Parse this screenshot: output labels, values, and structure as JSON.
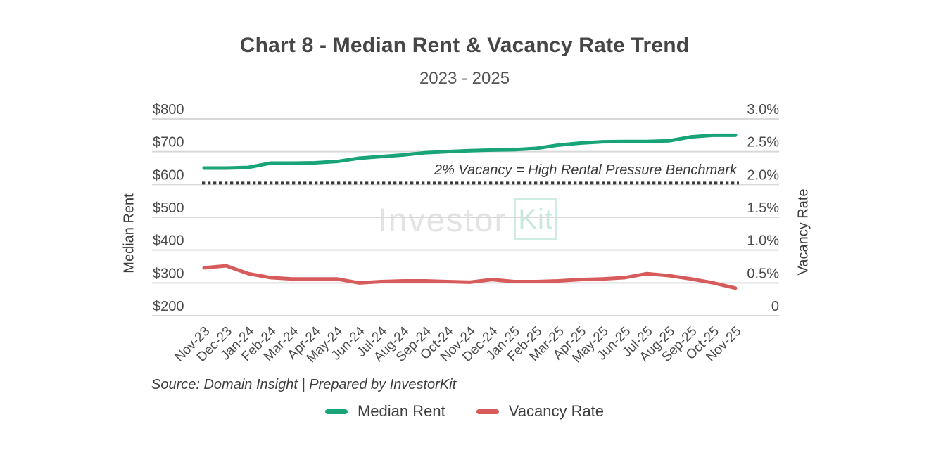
{
  "chart_data": {
    "type": "line",
    "title": "Chart 8 - Median Rent & Vacancy Rate Trend",
    "subtitle": "2023 - 2025",
    "categories": [
      "Nov-23",
      "Dec-23",
      "Jan-24",
      "Feb-24",
      "Mar-24",
      "Apr-24",
      "May-24",
      "Jun-24",
      "Jul-24",
      "Aug-24",
      "Sep-24",
      "Oct-24",
      "Nov-24",
      "Dec-24",
      "Jan-25",
      "Feb-25",
      "Mar-25",
      "Apr-25",
      "May-25",
      "Jun-25",
      "Jul-25",
      "Aug-25",
      "Sep-25",
      "Oct-25",
      "Nov-25"
    ],
    "series": [
      {
        "name": "Median Rent",
        "axis": "left",
        "color": "#18a379",
        "values": [
          650,
          650,
          652,
          665,
          665,
          666,
          670,
          680,
          685,
          690,
          697,
          700,
          703,
          705,
          706,
          710,
          720,
          726,
          730,
          731,
          731,
          733,
          745,
          750,
          750
        ]
      },
      {
        "name": "Vacancy Rate",
        "axis": "right",
        "color": "#d85b5b",
        "values": [
          0.73,
          0.76,
          0.64,
          0.58,
          0.56,
          0.56,
          0.56,
          0.5,
          0.52,
          0.53,
          0.53,
          0.52,
          0.51,
          0.55,
          0.52,
          0.52,
          0.53,
          0.55,
          0.56,
          0.58,
          0.64,
          0.61,
          0.56,
          0.5,
          0.42
        ]
      }
    ],
    "left_axis": {
      "title": "Median Rent",
      "min": 200,
      "max": 800,
      "ticks": [
        "$800",
        "$700",
        "$600",
        "$500",
        "$400",
        "$300",
        "$200"
      ]
    },
    "right_axis": {
      "title": "Vacancy Rate",
      "min": 0,
      "max": 3,
      "ticks": [
        "3.0%",
        "2.5%",
        "2.0%",
        "1.5%",
        "1.0%",
        "0.5%",
        "0"
      ]
    },
    "benchmark": {
      "value": 2.0,
      "axis": "right",
      "label": "2% Vacancy = High Rental Pressure Benchmark",
      "color": "#3a3a3a"
    },
    "grid": true,
    "gridline_color": "#d9d9d9",
    "tick_color": "#4b4b4b",
    "legend_position": "bottom",
    "source": "Source: Domain Insight | Prepared by InvestorKit",
    "watermark": {
      "text_left": "Investor",
      "text_boxed": "Kit"
    }
  }
}
